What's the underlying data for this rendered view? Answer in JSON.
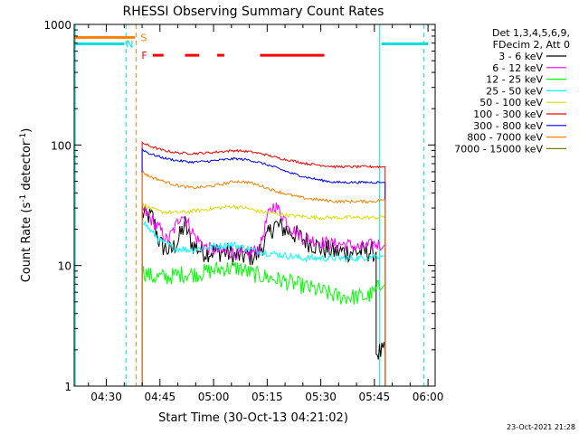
{
  "chart_data": {
    "type": "line",
    "title": "RHESSI Observing Summary Count Rates",
    "xlabel": "Start Time (30-Oct-13 04:21:02)",
    "ylabel": "Count Rate (s⁻¹ detector⁻¹)",
    "ylabel_parts": {
      "main": "Count Rate (s",
      "exp1": "-1",
      "mid": " detector",
      "exp2": "-1",
      "end": ")"
    },
    "y_scale": "log",
    "ylim": [
      1,
      1000
    ],
    "xlim_minutes": [
      261,
      362
    ],
    "y_ticks": [
      {
        "value": 1,
        "label": "1"
      },
      {
        "value": 10,
        "label": "10"
      },
      {
        "value": 100,
        "label": "100"
      },
      {
        "value": 1000,
        "label": "1000"
      }
    ],
    "x_ticks": [
      {
        "value": 270,
        "label": "04:30"
      },
      {
        "value": 285,
        "label": "04:45"
      },
      {
        "value": 300,
        "label": "05:00"
      },
      {
        "value": 315,
        "label": "05:15"
      },
      {
        "value": 330,
        "label": "05:30"
      },
      {
        "value": 345,
        "label": "05:45"
      },
      {
        "value": 360,
        "label": "06:00"
      }
    ],
    "header_lines": [
      "Det 1,3,4,5,6,9,",
      "FDecim 2, Att 0"
    ],
    "footer_date": "23-Oct-2021 21:28",
    "flags": [
      {
        "label": "S",
        "color": "#ff8000",
        "segments": [
          [
            261,
            278
          ]
        ],
        "y": 780
      },
      {
        "label": "N",
        "color": "#00e0e0",
        "segments": [
          [
            261,
            275
          ],
          [
            347,
            360
          ]
        ],
        "y": 690
      },
      {
        "label": "F",
        "color": "#ff0000",
        "segments": [
          [
            283,
            286
          ],
          [
            292,
            296
          ],
          [
            301,
            303
          ],
          [
            313,
            331
          ]
        ],
        "y": 555
      }
    ],
    "vlines": [
      {
        "x": 275.5,
        "color": "#00e0e0",
        "style": "dashed"
      },
      {
        "x": 278.3,
        "color": "#ff8000",
        "style": "dashed"
      },
      {
        "x": 346.5,
        "color": "#00e0e0",
        "style": "solid"
      },
      {
        "x": 358.8,
        "color": "#00e0e0",
        "style": "dashed"
      },
      {
        "x": 261.3,
        "color": "#00e0e0",
        "style": "solid"
      }
    ],
    "series": [
      {
        "name": "3 - 6 keV",
        "color": "#000000",
        "noise": 0.22,
        "points": [
          [
            280,
            27
          ],
          [
            283,
            25
          ],
          [
            285,
            15
          ],
          [
            288,
            13
          ],
          [
            290,
            16
          ],
          [
            292,
            22
          ],
          [
            294,
            15
          ],
          [
            297,
            13
          ],
          [
            300,
            13
          ],
          [
            303,
            13
          ],
          [
            306,
            12
          ],
          [
            309,
            12
          ],
          [
            312,
            12
          ],
          [
            315,
            17
          ],
          [
            317,
            22
          ],
          [
            320,
            20
          ],
          [
            323,
            18
          ],
          [
            326,
            16
          ],
          [
            330,
            14
          ],
          [
            334,
            13
          ],
          [
            338,
            13
          ],
          [
            341,
            13
          ],
          [
            343,
            13
          ],
          [
            345,
            13
          ],
          [
            345.5,
            1.9
          ],
          [
            348,
            1.9
          ]
        ]
      },
      {
        "name": "6 - 12 keV",
        "color": "#ff00ff",
        "noise": 0.14,
        "points": [
          [
            280,
            30
          ],
          [
            282,
            25
          ],
          [
            285,
            20
          ],
          [
            287,
            16
          ],
          [
            289,
            20
          ],
          [
            291,
            27
          ],
          [
            293,
            22
          ],
          [
            295,
            17
          ],
          [
            298,
            14
          ],
          [
            302,
            13
          ],
          [
            305,
            13
          ],
          [
            309,
            12
          ],
          [
            313,
            14
          ],
          [
            315,
            25
          ],
          [
            317,
            32
          ],
          [
            319,
            27
          ],
          [
            322,
            20
          ],
          [
            325,
            17
          ],
          [
            329,
            16
          ],
          [
            333,
            15
          ],
          [
            337,
            15
          ],
          [
            341,
            14
          ],
          [
            345,
            15
          ],
          [
            347,
            15
          ],
          [
            348,
            3
          ]
        ]
      },
      {
        "name": "12 - 25 keV",
        "color": "#00ff00",
        "noise": 0.18,
        "points": [
          [
            280,
            9
          ],
          [
            283,
            8
          ],
          [
            287,
            8
          ],
          [
            291,
            8.5
          ],
          [
            295,
            8.5
          ],
          [
            299,
            9
          ],
          [
            303,
            9.5
          ],
          [
            307,
            9.5
          ],
          [
            311,
            8.5
          ],
          [
            315,
            8
          ],
          [
            319,
            7.5
          ],
          [
            323,
            7
          ],
          [
            327,
            6.5
          ],
          [
            331,
            6
          ],
          [
            335,
            5.5
          ],
          [
            339,
            5.5
          ],
          [
            343,
            5.5
          ],
          [
            345,
            6
          ],
          [
            347,
            7
          ],
          [
            348,
            1.5
          ]
        ]
      },
      {
        "name": "25 - 50 keV",
        "color": "#00ffff",
        "noise": 0.07,
        "points": [
          [
            280,
            24
          ],
          [
            282,
            20
          ],
          [
            285,
            16
          ],
          [
            289,
            14
          ],
          [
            293,
            13.5
          ],
          [
            297,
            14
          ],
          [
            301,
            14.5
          ],
          [
            305,
            15
          ],
          [
            309,
            14
          ],
          [
            313,
            13
          ],
          [
            317,
            12.5
          ],
          [
            321,
            12
          ],
          [
            325,
            11.5
          ],
          [
            329,
            11.5
          ],
          [
            333,
            11.5
          ],
          [
            337,
            11.5
          ],
          [
            341,
            11.5
          ],
          [
            345,
            12
          ],
          [
            347,
            12
          ],
          [
            348,
            2.5
          ]
        ]
      },
      {
        "name": "50 - 100 keV",
        "color": "#dddd00",
        "noise": 0.04,
        "points": [
          [
            280,
            32
          ],
          [
            282,
            30
          ],
          [
            285,
            28
          ],
          [
            289,
            27.5
          ],
          [
            293,
            28
          ],
          [
            297,
            29
          ],
          [
            301,
            30
          ],
          [
            305,
            31
          ],
          [
            309,
            30
          ],
          [
            313,
            28
          ],
          [
            317,
            27
          ],
          [
            321,
            26
          ],
          [
            325,
            25.5
          ],
          [
            329,
            25
          ],
          [
            333,
            25
          ],
          [
            337,
            25
          ],
          [
            341,
            25
          ],
          [
            345,
            25
          ],
          [
            347,
            25
          ],
          [
            348,
            5
          ]
        ]
      },
      {
        "name": "100 - 300 keV",
        "color": "#ff0000",
        "noise": 0.025,
        "points": [
          [
            280,
            105
          ],
          [
            282,
            98
          ],
          [
            286,
            90
          ],
          [
            290,
            86
          ],
          [
            294,
            85
          ],
          [
            298,
            86
          ],
          [
            302,
            88
          ],
          [
            306,
            90
          ],
          [
            310,
            88
          ],
          [
            314,
            84
          ],
          [
            318,
            78
          ],
          [
            322,
            74
          ],
          [
            326,
            70
          ],
          [
            330,
            68
          ],
          [
            334,
            66
          ],
          [
            338,
            66
          ],
          [
            342,
            66
          ],
          [
            345,
            66
          ],
          [
            347,
            66
          ],
          [
            348,
            12
          ]
        ]
      },
      {
        "name": "300 - 800 keV",
        "color": "#0000ff",
        "noise": 0.025,
        "points": [
          [
            280,
            92
          ],
          [
            282,
            85
          ],
          [
            286,
            78
          ],
          [
            290,
            74
          ],
          [
            294,
            72
          ],
          [
            298,
            73
          ],
          [
            302,
            75
          ],
          [
            306,
            77
          ],
          [
            310,
            75
          ],
          [
            314,
            70
          ],
          [
            318,
            64
          ],
          [
            322,
            58
          ],
          [
            326,
            54
          ],
          [
            330,
            51
          ],
          [
            334,
            49
          ],
          [
            338,
            49
          ],
          [
            342,
            49
          ],
          [
            345,
            49
          ],
          [
            347,
            49
          ],
          [
            348,
            10
          ]
        ]
      },
      {
        "name": "800 - 7000 keV",
        "color": "#ff8000",
        "noise": 0.03,
        "points": [
          [
            280,
            60
          ],
          [
            282,
            55
          ],
          [
            286,
            50
          ],
          [
            290,
            46
          ],
          [
            294,
            44
          ],
          [
            298,
            45
          ],
          [
            302,
            47
          ],
          [
            306,
            50
          ],
          [
            310,
            49
          ],
          [
            314,
            45
          ],
          [
            318,
            41
          ],
          [
            322,
            38
          ],
          [
            326,
            36
          ],
          [
            330,
            35
          ],
          [
            334,
            34
          ],
          [
            338,
            34
          ],
          [
            342,
            34
          ],
          [
            345,
            34
          ],
          [
            347,
            35
          ],
          [
            348,
            1.5
          ]
        ]
      },
      {
        "name": "7000 - 15000 keV",
        "color": "#808000",
        "noise": 0,
        "points": []
      }
    ]
  }
}
